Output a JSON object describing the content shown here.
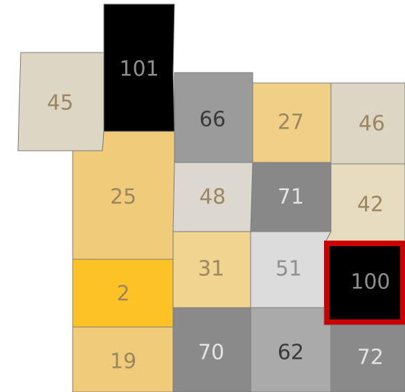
{
  "regions": [
    "45",
    "101",
    "66",
    "27",
    "46",
    "25",
    "48",
    "71",
    "42",
    "2",
    "31",
    "51",
    "100",
    "19",
    "70",
    "62",
    "72"
  ]
}
